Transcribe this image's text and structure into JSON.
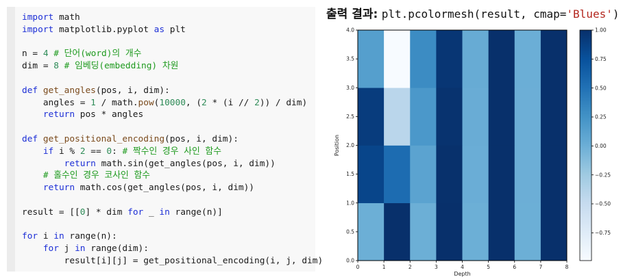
{
  "code": {
    "lines": [
      [
        [
          "import",
          "kw"
        ],
        [
          " math",
          "tx"
        ]
      ],
      [
        [
          "import",
          "kw"
        ],
        [
          " matplotlib.pyplot ",
          "tx"
        ],
        [
          "as",
          "kw"
        ],
        [
          " plt",
          "tx"
        ]
      ],
      [],
      [
        [
          "n = ",
          "tx"
        ],
        [
          "4",
          "num"
        ],
        [
          " # 단어(word)의 개수",
          "cm"
        ]
      ],
      [
        [
          "dim = ",
          "tx"
        ],
        [
          "8",
          "num"
        ],
        [
          " # 임베딩(embedding) 차원",
          "cm"
        ]
      ],
      [],
      [
        [
          "def",
          "kw"
        ],
        [
          " ",
          "tx"
        ],
        [
          "get_angles",
          "fn"
        ],
        [
          "(pos, i, dim):",
          "tx"
        ]
      ],
      [
        [
          "    angles = ",
          "tx"
        ],
        [
          "1",
          "num"
        ],
        [
          " / math.",
          "tx"
        ],
        [
          "pow",
          "fn"
        ],
        [
          "(",
          "tx"
        ],
        [
          "10000",
          "num"
        ],
        [
          ", (",
          "tx"
        ],
        [
          "2",
          "num"
        ],
        [
          " * (i // ",
          "tx"
        ],
        [
          "2",
          "num"
        ],
        [
          ")) / dim)",
          "tx"
        ]
      ],
      [
        [
          "    ",
          "tx"
        ],
        [
          "return",
          "kw"
        ],
        [
          " pos * angles",
          "tx"
        ]
      ],
      [],
      [
        [
          "def",
          "kw"
        ],
        [
          " ",
          "tx"
        ],
        [
          "get_positional_encoding",
          "fn"
        ],
        [
          "(pos, i, dim):",
          "tx"
        ]
      ],
      [
        [
          "    ",
          "tx"
        ],
        [
          "if",
          "kw"
        ],
        [
          " i ",
          "tx"
        ],
        [
          "%",
          "tx"
        ],
        [
          " ",
          "tx"
        ],
        [
          "2",
          "num"
        ],
        [
          " == ",
          "tx"
        ],
        [
          "0",
          "num"
        ],
        [
          ": ",
          "tx"
        ],
        [
          "# 짝수인 경우 사인 함수",
          "cm"
        ]
      ],
      [
        [
          "        ",
          "tx"
        ],
        [
          "return",
          "kw"
        ],
        [
          " math.sin(get_angles(pos, i, dim))",
          "tx"
        ]
      ],
      [
        [
          "    ",
          "tx"
        ],
        [
          "# 홀수인 경우 코사인 함수",
          "cm"
        ]
      ],
      [
        [
          "    ",
          "tx"
        ],
        [
          "return",
          "kw"
        ],
        [
          " math.cos(get_angles(pos, i, dim))",
          "tx"
        ]
      ],
      [],
      [
        [
          "result = [[",
          "tx"
        ],
        [
          "0",
          "num"
        ],
        [
          "] * dim ",
          "tx"
        ],
        [
          "for",
          "kw"
        ],
        [
          " _ ",
          "tx"
        ],
        [
          "in",
          "kw"
        ],
        [
          " range(n)]",
          "tx"
        ]
      ],
      [],
      [
        [
          "for",
          "kw"
        ],
        [
          " i ",
          "tx"
        ],
        [
          "in",
          "kw"
        ],
        [
          " range(n):",
          "tx"
        ]
      ],
      [
        [
          "    ",
          "tx"
        ],
        [
          "for",
          "kw"
        ],
        [
          " j ",
          "tx"
        ],
        [
          "in",
          "kw"
        ],
        [
          " range(dim):",
          "tx"
        ]
      ],
      [
        [
          "        result[i][j] = get_positional_encoding(i, j, dim)",
          "tx"
        ]
      ]
    ]
  },
  "output_title": {
    "label": "출력 결과:",
    "code_prefix": "plt.pcolormesh(result, cmap=",
    "code_string": "'Blues'",
    "code_suffix": ")"
  },
  "colors": {
    "cmap_low": "#f7fbff",
    "cmap_high": "#08306b",
    "keyword": "#1d2fd6",
    "comment": "#1e9a1e",
    "number": "#2e8b57",
    "function": "#7a4a1c",
    "string": "#b3261e"
  },
  "chart_data": {
    "type": "heatmap",
    "title": "",
    "xlabel": "Depth",
    "ylabel": "Position",
    "x_edges": [
      0,
      1,
      2,
      3,
      4,
      5,
      6,
      7,
      8
    ],
    "y_edges": [
      0,
      1,
      2,
      3,
      4
    ],
    "xlim": [
      0,
      8
    ],
    "ylim": [
      0,
      4
    ],
    "x_ticks": [
      "0",
      "1",
      "2",
      "3",
      "4",
      "5",
      "6",
      "7",
      "8"
    ],
    "y_ticks": [
      "0.0",
      "0.5",
      "1.0",
      "1.5",
      "2.0",
      "2.5",
      "3.0",
      "3.5",
      "4.0"
    ],
    "rows_bottom_to_top": [
      [
        0.0,
        1.0,
        0.0,
        1.0,
        0.0,
        1.0,
        0.0,
        1.0
      ],
      [
        0.841471,
        0.540302,
        0.099833,
        0.995004,
        0.01,
        0.99995,
        0.001,
        1.0
      ],
      [
        0.909297,
        -0.416147,
        0.198669,
        0.980067,
        0.019999,
        0.9998,
        0.002,
        0.999998
      ],
      [
        0.14112,
        -0.989992,
        0.29552,
        0.955336,
        0.029996,
        0.99955,
        0.003,
        0.999996
      ]
    ],
    "vmin": -0.989992,
    "vmax": 1.0,
    "colormap": "Blues",
    "colorbar_ticks": [
      "1.00",
      "0.75",
      "0.50",
      "0.25",
      "0.00",
      "−0.25",
      "−0.50",
      "−0.75"
    ],
    "colorbar_tick_values": [
      1.0,
      0.75,
      0.5,
      0.25,
      0.0,
      -0.25,
      -0.5,
      -0.75
    ],
    "grid": false
  }
}
